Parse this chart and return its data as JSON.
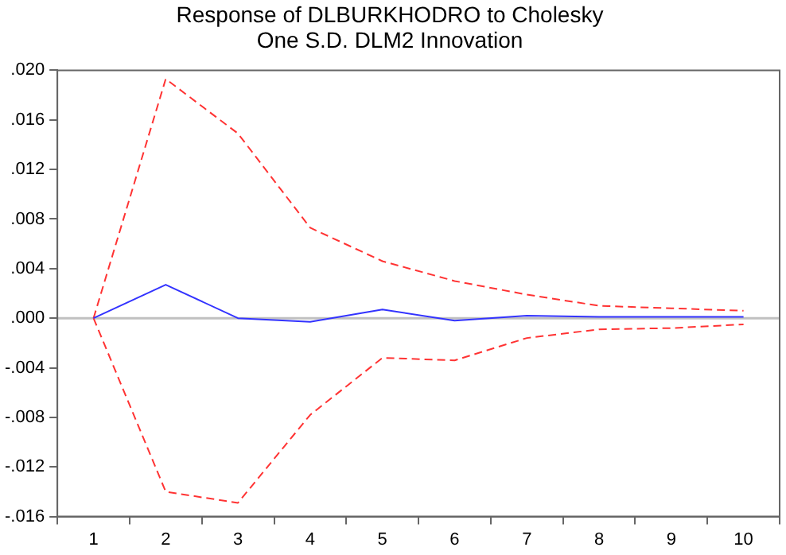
{
  "chart_data": {
    "type": "line",
    "title": "Response of DLBURKHODRO to Cholesky\nOne S.D. DLM2 Innovation",
    "categories": [
      "1",
      "2",
      "3",
      "4",
      "5",
      "6",
      "7",
      "8",
      "9",
      "10"
    ],
    "series": [
      {
        "color": "#3333ff",
        "line_style": "solid",
        "values": [
          0,
          0.0027,
          0,
          -0.0003,
          0.0007,
          -0.0002,
          0.0002,
          0.0001,
          0.0001,
          0.0001
        ]
      },
      {
        "color": "#ff3333",
        "line_style": "dashed",
        "values": [
          0,
          0.0193,
          0.0149,
          0.0073,
          0.0046,
          0.003,
          0.0019,
          0.001,
          0.0008,
          0.0006
        ]
      },
      {
        "color": "#ff3333",
        "line_style": "dashed",
        "values": [
          0,
          -0.014,
          -0.0149,
          -0.0078,
          -0.0032,
          -0.0034,
          -0.0016,
          -0.0009,
          -0.0008,
          -0.0005
        ]
      }
    ],
    "ylim": [
      -0.016,
      0.02
    ],
    "yticks": [
      {
        "value": 0.02,
        "label": ".020"
      },
      {
        "value": 0.016,
        "label": ".016"
      },
      {
        "value": 0.012,
        "label": ".012"
      },
      {
        "value": 0.008,
        "label": ".008"
      },
      {
        "value": 0.004,
        "label": ".004"
      },
      {
        "value": 0,
        "label": ".000"
      },
      {
        "value": -0.004,
        "label": "-.004"
      },
      {
        "value": -0.008,
        "label": "-.008"
      },
      {
        "value": -0.012,
        "label": "-.012"
      },
      {
        "value": -0.016,
        "label": "-.016"
      }
    ],
    "ref_lines": [
      {
        "axis": "y",
        "value": 0,
        "color": "#c0c0c0"
      }
    ],
    "grid": false,
    "legend": false,
    "marker": "none"
  }
}
